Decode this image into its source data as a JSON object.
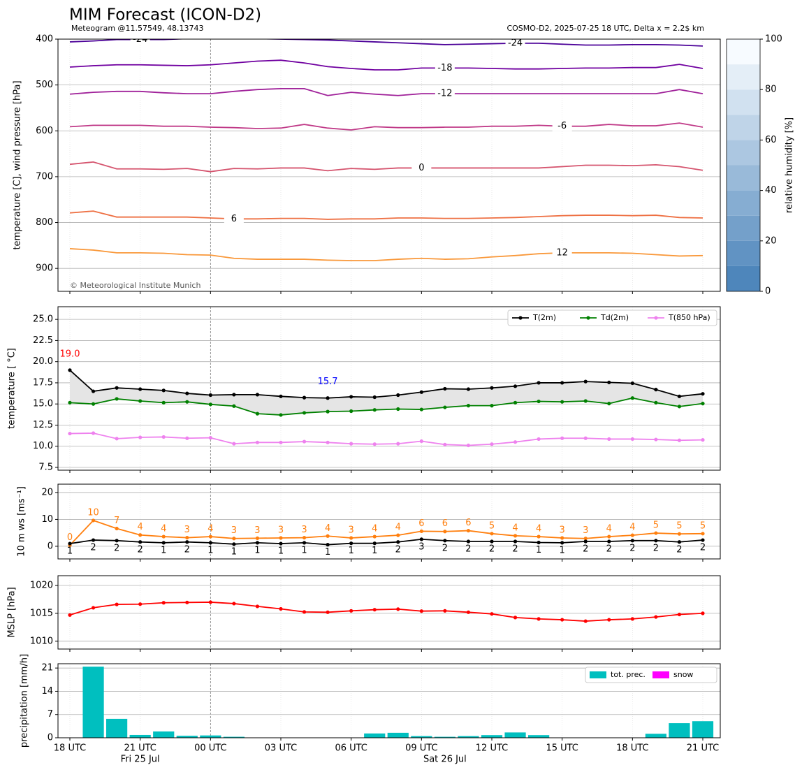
{
  "title": "MIM Forecast (ICON-D2)",
  "subtitle_left": "Meteogram @11.57549, 48.13743",
  "subtitle_right": "COSMO-D2, 2025-07-25 18 UTC, Delta x = 2.2$ km",
  "copyright": "© Meteorological Institute Munich",
  "time_axis": {
    "categories": [
      "18 UTC",
      null,
      null,
      "21 UTC",
      null,
      null,
      "00 UTC",
      null,
      null,
      "03 UTC",
      null,
      null,
      "06 UTC",
      null,
      null,
      "09 UTC",
      null,
      null,
      "12 UTC",
      null,
      null,
      "15 UTC",
      null,
      null,
      "18 UTC",
      null,
      null,
      "21 UTC"
    ],
    "date_labels": [
      null,
      null,
      null,
      "Fri 25 Jul",
      null,
      null,
      null,
      null,
      null,
      null,
      null,
      null,
      null,
      null,
      null,
      null,
      "Sat 26 Jul",
      null,
      null,
      null,
      null,
      null,
      null,
      null,
      null,
      null,
      null,
      null
    ]
  },
  "chart_data": [
    {
      "type": "contour",
      "ylabel": "temperature [C], wind pressure [hPa]",
      "ylim": [
        950,
        400
      ],
      "yticks": [
        400,
        500,
        600,
        700,
        800,
        900
      ],
      "grid": true,
      "series": [
        {
          "name": "-24",
          "color": "#4b0098",
          "values": [
            406,
            404,
            401,
            401,
            401,
            399,
            397,
            398,
            399,
            400,
            401,
            402,
            404,
            406,
            408,
            410,
            412,
            411,
            410,
            409,
            409,
            411,
            413,
            413,
            412,
            412,
            413,
            415
          ]
        },
        {
          "name": "-18",
          "color": "#7000a0",
          "values": [
            461,
            458,
            456,
            456,
            457,
            458,
            456,
            452,
            448,
            446,
            452,
            460,
            464,
            467,
            467,
            463,
            463,
            463,
            464,
            465,
            465,
            464,
            463,
            463,
            462,
            462,
            455,
            464
          ]
        },
        {
          "name": "-12",
          "color": "#a0229a",
          "values": [
            520,
            516,
            514,
            514,
            517,
            519,
            519,
            514,
            510,
            508,
            508,
            523,
            516,
            520,
            523,
            519,
            519,
            519,
            519,
            519,
            519,
            519,
            519,
            519,
            519,
            519,
            510,
            519
          ]
        },
        {
          "name": "-6",
          "color": "#c03a88",
          "values": [
            591,
            588,
            588,
            588,
            590,
            590,
            592,
            593,
            595,
            594,
            586,
            594,
            598,
            591,
            593,
            593,
            592,
            592,
            590,
            590,
            588,
            590,
            590,
            586,
            589,
            589,
            583,
            592
          ]
        },
        {
          "name": "0",
          "color": "#d5546e",
          "values": [
            673,
            668,
            683,
            683,
            684,
            682,
            689,
            682,
            683,
            681,
            681,
            687,
            682,
            684,
            681,
            681,
            681,
            681,
            681,
            681,
            681,
            678,
            675,
            675,
            676,
            674,
            678,
            686
          ]
        },
        {
          "name": "6",
          "color": "#ee7043",
          "values": [
            779,
            775,
            788,
            788,
            788,
            788,
            790,
            792,
            792,
            791,
            791,
            793,
            792,
            792,
            790,
            790,
            791,
            791,
            790,
            789,
            787,
            785,
            784,
            784,
            785,
            784,
            789,
            790
          ]
        },
        {
          "name": "12",
          "color": "#f9983a",
          "values": [
            857,
            860,
            866,
            866,
            867,
            870,
            871,
            878,
            880,
            880,
            880,
            882,
            883,
            883,
            880,
            878,
            880,
            879,
            875,
            872,
            868,
            866,
            866,
            866,
            867,
            870,
            873,
            872
          ]
        }
      ],
      "colorbar": {
        "label": "relative humidity [%]",
        "lim": [
          0,
          100
        ],
        "ticks": [
          0,
          20,
          40,
          60,
          80,
          100
        ],
        "colors": [
          "#4e86bb",
          "#f7fbff"
        ]
      }
    },
    {
      "type": "line",
      "ylabel": "temperature [ °C]",
      "ylim": [
        7.17,
        26.5
      ],
      "yticks": [
        7.5,
        {
          "value": 10,
          "label": "10.0"
        },
        12.5,
        {
          "value": 15,
          "label": "15.0"
        },
        17.5,
        {
          "value": 20,
          "label": "20.0"
        },
        22.5,
        {
          "value": 25,
          "label": "25.0"
        }
      ],
      "grid": true,
      "legend": "upper right",
      "shade": "#e5e5e5",
      "series": [
        {
          "name": "T(2m)",
          "color": "#000000",
          "values": [
            19.0,
            16.5,
            16.9,
            16.75,
            16.6,
            16.25,
            16.05,
            16.1,
            16.1,
            15.9,
            15.75,
            15.7,
            15.85,
            15.8,
            16.05,
            16.4,
            16.8,
            16.75,
            16.9,
            17.1,
            17.5,
            17.5,
            17.65,
            17.55,
            17.45,
            16.7,
            15.9,
            16.2
          ],
          "max_label": "19.0",
          "max_label_color": "#ff0000",
          "min_label": "15.7",
          "min_label_color": "#0000ff"
        },
        {
          "name": "Td(2m)",
          "color": "#008000",
          "values": [
            15.15,
            15.0,
            15.6,
            15.35,
            15.15,
            15.25,
            14.95,
            14.75,
            13.85,
            13.7,
            13.95,
            14.1,
            14.15,
            14.3,
            14.4,
            14.35,
            14.6,
            14.8,
            14.8,
            15.15,
            15.3,
            15.25,
            15.35,
            15.05,
            15.7,
            15.15,
            14.7,
            15.05
          ]
        },
        {
          "name": "T(850 hPa)",
          "color": "#ee82ee",
          "values": [
            11.5,
            11.55,
            10.9,
            11.05,
            11.1,
            10.95,
            11.0,
            10.3,
            10.45,
            10.45,
            10.55,
            10.45,
            10.3,
            10.25,
            10.3,
            10.6,
            10.2,
            10.1,
            10.25,
            10.5,
            10.85,
            10.95,
            10.95,
            10.85,
            10.85,
            10.8,
            10.7,
            10.75
          ]
        }
      ]
    },
    {
      "type": "line",
      "ylabel": "10 m ws [ms⁻¹]",
      "ylim": [
        -4.7,
        23.1
      ],
      "yticks": [
        0,
        10,
        20
      ],
      "grid": true,
      "series": [
        {
          "color": "#ff7f0e",
          "values": [
            0.4,
            9.6,
            6.6,
            4.2,
            3.6,
            3.2,
            3.6,
            2.9,
            3.0,
            3.1,
            3.2,
            3.8,
            3.1,
            3.6,
            4.1,
            5.6,
            5.5,
            5.8,
            4.7,
            3.9,
            3.6,
            3.1,
            2.9,
            3.6,
            4.1,
            4.9,
            4.6,
            4.7
          ],
          "value_labels": [
            "0",
            "10",
            "7",
            "4",
            "4",
            "3",
            "4",
            "3",
            "3",
            "3",
            "3",
            "4",
            "3",
            "4",
            "4",
            "6",
            "6",
            "6",
            "5",
            "4",
            "4",
            "3",
            "3",
            "4",
            "4",
            "5",
            "5",
            "5"
          ]
        },
        {
          "color": "#000000",
          "values": [
            1.0,
            2.3,
            2.1,
            1.6,
            1.3,
            1.6,
            1.3,
            0.8,
            1.3,
            1.0,
            1.3,
            0.6,
            1.1,
            1.1,
            1.6,
            2.6,
            2.1,
            1.8,
            1.8,
            1.8,
            1.4,
            1.3,
            1.8,
            1.8,
            2.1,
            2.1,
            1.6,
            2.3
          ],
          "value_labels": [
            "1",
            "2",
            "2",
            "2",
            "1",
            "2",
            "1",
            "1",
            "1",
            "1",
            "1",
            "1",
            "1",
            "1",
            "2",
            "3",
            "2",
            "2",
            "2",
            "2",
            "1",
            "1",
            "2",
            "2",
            "2",
            "2",
            "2",
            "2"
          ]
        }
      ]
    },
    {
      "type": "line",
      "ylabel": "MSLP [hPa]",
      "ylim": [
        1008.6,
        1021.75
      ],
      "yticks": [
        1010,
        1015,
        1020
      ],
      "grid": true,
      "series": [
        {
          "color": "#ff0000",
          "values": [
            1014.7,
            1016.0,
            1016.6,
            1016.65,
            1016.9,
            1016.95,
            1017.0,
            1016.75,
            1016.25,
            1015.8,
            1015.25,
            1015.2,
            1015.45,
            1015.65,
            1015.75,
            1015.4,
            1015.45,
            1015.2,
            1014.9,
            1014.25,
            1014.0,
            1013.85,
            1013.6,
            1013.85,
            1014.0,
            1014.35,
            1014.8,
            1015.0
          ]
        }
      ]
    },
    {
      "type": "bar",
      "ylabel": "precipitation [mm/h]",
      "ylim": [
        0,
        22.3
      ],
      "yticks": [
        0,
        7,
        14,
        21
      ],
      "grid": true,
      "legend": "upper right",
      "series": [
        {
          "name": "tot. prec.",
          "color": "#00bfbf",
          "values": [
            0,
            21.4,
            5.7,
            0.85,
            1.9,
            0.6,
            0.7,
            0.3,
            0.1,
            0.1,
            0.1,
            0,
            0.1,
            1.3,
            1.5,
            0.5,
            0.3,
            0.5,
            0.8,
            1.6,
            0.8,
            0.1,
            0.1,
            0.1,
            0.1,
            1.2,
            4.4,
            5.0
          ]
        },
        {
          "name": "snow",
          "color": "#ff00ff",
          "values": [
            0,
            0,
            0,
            0,
            0,
            0,
            0,
            0,
            0,
            0,
            0,
            0,
            0,
            0,
            0,
            0,
            0,
            0,
            0,
            0,
            0,
            0,
            0,
            0,
            0,
            0,
            0,
            0
          ]
        }
      ]
    }
  ]
}
